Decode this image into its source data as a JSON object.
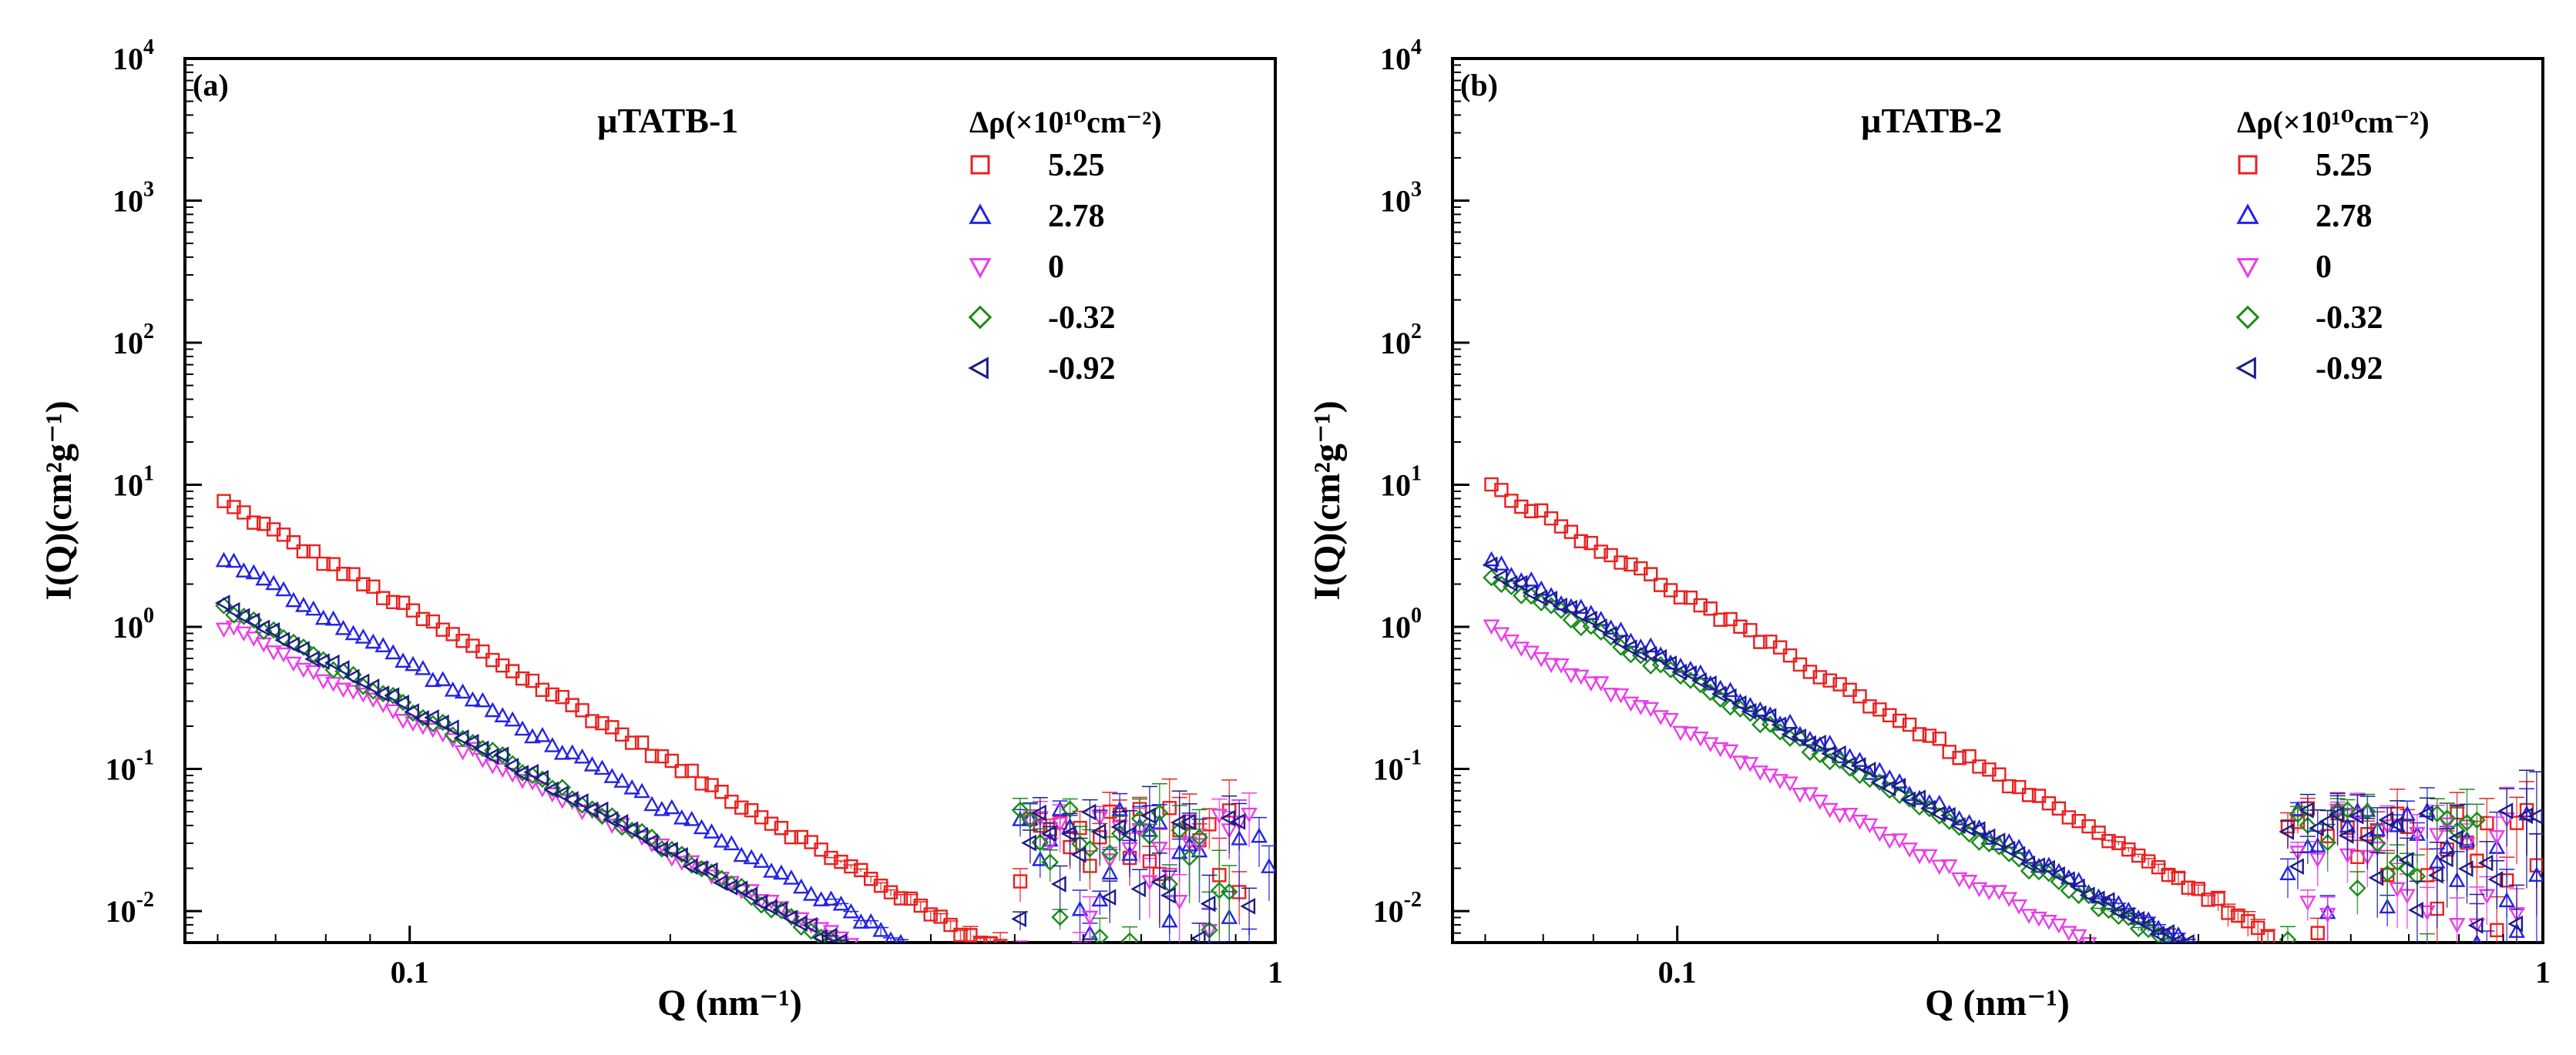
{
  "colors": {
    "red": "#e8211f",
    "blue": "#2323e6",
    "magenta": "#ea3de9",
    "green": "#1a8c1a",
    "navy": "#1c1c8a"
  },
  "chart_data": [
    {
      "type": "scatter",
      "panel_label": "(a)",
      "title": "µTATB-1",
      "xlabel": "Q (nm⁻¹)",
      "ylabel": "I(Q)(cm²g⁻¹)",
      "xscale": "log",
      "yscale": "log",
      "xlim": [
        0.055,
        1.0
      ],
      "ylim": [
        0.006,
        10000
      ],
      "xticks": [
        {
          "v": 0.1,
          "label": "0.1"
        },
        {
          "v": 1,
          "label": "1"
        }
      ],
      "yticks": [
        {
          "v": 0.01,
          "mant": "10",
          "exp": "-2"
        },
        {
          "v": 0.1,
          "mant": "10",
          "exp": "-1"
        },
        {
          "v": 1,
          "mant": "10",
          "exp": "0"
        },
        {
          "v": 10,
          "mant": "10",
          "exp": "1"
        },
        {
          "v": 100,
          "mant": "10",
          "exp": "2"
        },
        {
          "v": 1000,
          "mant": "10",
          "exp": "3"
        },
        {
          "v": 10000,
          "mant": "10",
          "exp": "4"
        }
      ],
      "legend_title": "Δρ(×10¹⁰cm⁻²)",
      "legend_location": "top-right",
      "series": [
        {
          "name": "5.25",
          "marker": "square",
          "color": "red",
          "amplitude": 1.3,
          "slope": 3.55,
          "q_end": 0.92
        },
        {
          "name": "2.78",
          "marker": "triangle-up",
          "color": "blue",
          "amplitude": 0.55,
          "slope": 3.45,
          "q_end": 1.0
        },
        {
          "name": "0",
          "marker": "triangle-down",
          "color": "magenta",
          "amplitude": 0.22,
          "slope": 3.1,
          "q_end": 0.95
        },
        {
          "name": "-0.32",
          "marker": "diamond",
          "color": "green",
          "amplitude": 0.27,
          "slope": 3.35,
          "q_end": 0.9
        },
        {
          "name": "-0.92",
          "marker": "triangle-left",
          "color": "navy",
          "amplitude": 0.27,
          "slope": 3.35,
          "q_end": 0.95
        }
      ]
    },
    {
      "type": "scatter",
      "panel_label": "(b)",
      "title": "µTATB-2",
      "xlabel": "Q (nm⁻¹)",
      "ylabel": "I(Q)(cm²g⁻¹)",
      "xscale": "log",
      "yscale": "log",
      "xlim": [
        0.055,
        1.0
      ],
      "ylim": [
        0.006,
        10000
      ],
      "xticks": [
        {
          "v": 0.1,
          "label": "0.1"
        },
        {
          "v": 1,
          "label": "1"
        }
      ],
      "yticks": [
        {
          "v": 0.01,
          "mant": "10",
          "exp": "-2"
        },
        {
          "v": 0.1,
          "mant": "10",
          "exp": "-1"
        },
        {
          "v": 1,
          "mant": "10",
          "exp": "0"
        },
        {
          "v": 10,
          "mant": "10",
          "exp": "1"
        },
        {
          "v": 100,
          "mant": "10",
          "exp": "2"
        },
        {
          "v": 1000,
          "mant": "10",
          "exp": "3"
        },
        {
          "v": 10000,
          "mant": "10",
          "exp": "4"
        }
      ],
      "legend_title": "Δρ(×10¹⁰cm⁻²)",
      "legend_location": "top-right",
      "series": [
        {
          "name": "5.25",
          "marker": "square",
          "color": "red",
          "amplitude": 1.75,
          "slope": 3.5,
          "q_end": 1.0
        },
        {
          "name": "2.78",
          "marker": "triangle-up",
          "color": "blue",
          "amplitude": 0.55,
          "slope": 3.35,
          "q_end": 1.0
        },
        {
          "name": "0",
          "marker": "triangle-down",
          "color": "magenta",
          "amplitude": 0.2,
          "slope": 3.2,
          "q_end": 0.95
        },
        {
          "name": "-0.32",
          "marker": "diamond",
          "color": "green",
          "amplitude": 0.45,
          "slope": 3.3,
          "q_end": 0.85
        },
        {
          "name": "-0.92",
          "marker": "triangle-left",
          "color": "navy",
          "amplitude": 0.5,
          "slope": 3.3,
          "q_end": 1.0
        }
      ]
    }
  ]
}
